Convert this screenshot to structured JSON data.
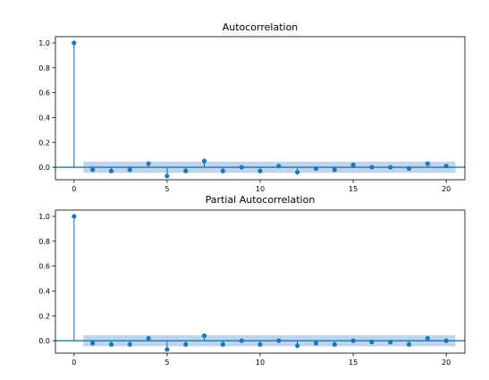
{
  "chart_data": [
    {
      "type": "stem",
      "title": "Autocorrelation",
      "xlabel": "",
      "ylabel": "",
      "xlim": [
        -1,
        21
      ],
      "ylim": [
        -0.1,
        1.05
      ],
      "xticks": [
        0,
        5,
        10,
        15,
        20
      ],
      "yticks": [
        0.0,
        0.2,
        0.4,
        0.6,
        0.8,
        1.0
      ],
      "xtick_labels": [
        "0",
        "5",
        "10",
        "15",
        "20"
      ],
      "ytick_labels": [
        "0.0",
        "0.2",
        "0.4",
        "0.6",
        "0.8",
        "1.0"
      ],
      "lags": [
        0,
        1,
        2,
        3,
        4,
        5,
        6,
        7,
        8,
        9,
        10,
        11,
        12,
        13,
        14,
        15,
        16,
        17,
        18,
        19,
        20
      ],
      "values": [
        1.0,
        -0.02,
        -0.03,
        -0.02,
        0.03,
        -0.07,
        -0.03,
        0.05,
        -0.03,
        0.0,
        -0.03,
        0.01,
        -0.04,
        -0.01,
        -0.02,
        0.02,
        0.0,
        0.0,
        -0.01,
        0.03,
        0.01
      ],
      "confidence_band": [
        -0.045,
        0.045
      ],
      "colors": {
        "marker": "#1f77b4",
        "band": "#aac7e6",
        "zero_line": "#1f77b4"
      }
    },
    {
      "type": "stem",
      "title": "Partial Autocorrelation",
      "xlabel": "",
      "ylabel": "",
      "xlim": [
        -1,
        21
      ],
      "ylim": [
        -0.1,
        1.05
      ],
      "xticks": [
        0,
        5,
        10,
        15,
        20
      ],
      "yticks": [
        0.0,
        0.2,
        0.4,
        0.6,
        0.8,
        1.0
      ],
      "xtick_labels": [
        "0",
        "5",
        "10",
        "15",
        "20"
      ],
      "ytick_labels": [
        "0.0",
        "0.2",
        "0.4",
        "0.6",
        "0.8",
        "1.0"
      ],
      "lags": [
        0,
        1,
        2,
        3,
        4,
        5,
        6,
        7,
        8,
        9,
        10,
        11,
        12,
        13,
        14,
        15,
        16,
        17,
        18,
        19,
        20
      ],
      "values": [
        1.0,
        -0.02,
        -0.03,
        -0.03,
        0.02,
        -0.07,
        -0.03,
        0.04,
        -0.03,
        0.0,
        -0.03,
        0.0,
        -0.04,
        -0.02,
        -0.03,
        0.0,
        -0.01,
        -0.01,
        -0.03,
        0.02,
        0.0
      ],
      "confidence_band": [
        -0.045,
        0.045
      ],
      "colors": {
        "marker": "#1f77b4",
        "band": "#aac7e6",
        "zero_line": "#1f77b4"
      }
    }
  ]
}
